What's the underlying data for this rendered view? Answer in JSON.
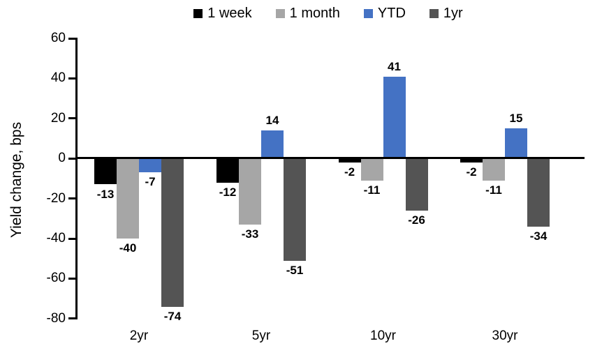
{
  "chart_data": {
    "type": "bar",
    "title": "",
    "categories": [
      "2yr",
      "5yr",
      "10yr",
      "30yr"
    ],
    "series": [
      {
        "name": "1 week",
        "color": "#000000",
        "values": [
          -13,
          -12,
          -2,
          -2
        ]
      },
      {
        "name": "1 month",
        "color": "#A6A6A6",
        "values": [
          -40,
          -33,
          -11,
          -11
        ]
      },
      {
        "name": "YTD",
        "color": "#4472C4",
        "values": [
          -7,
          14,
          41,
          15
        ]
      },
      {
        "name": "1yr",
        "color": "#545454",
        "values": [
          -74,
          -51,
          -26,
          -34
        ]
      }
    ],
    "xlabel": "",
    "ylabel": "Yield change, bps",
    "ylim": [
      -80,
      60
    ],
    "ytick_step": 20,
    "yticks": [
      60,
      40,
      20,
      0,
      -20,
      -40,
      -60,
      -80
    ],
    "grid": false,
    "legend_position": "top",
    "data_labels": true
  }
}
